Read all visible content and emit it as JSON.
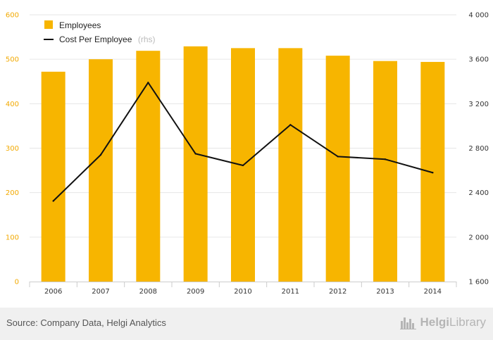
{
  "chart_data": {
    "type": "bar",
    "categories": [
      "2006",
      "2007",
      "2008",
      "2009",
      "2010",
      "2011",
      "2012",
      "2013",
      "2014"
    ],
    "series": [
      {
        "name": "Employees",
        "type": "bar",
        "axis": "left",
        "color": "#f7b500",
        "values": [
          472,
          500,
          519,
          529,
          525,
          525,
          508,
          496,
          494
        ]
      },
      {
        "name": "Cost Per Employee",
        "axis_note": "(rhs)",
        "type": "line",
        "axis": "right",
        "color": "#111111",
        "values": [
          2325,
          2740,
          3390,
          2750,
          2645,
          3010,
          2725,
          2700,
          2580
        ]
      }
    ],
    "y_left": {
      "min": 0,
      "max": 600,
      "ticks": [
        "0",
        "100",
        "200",
        "300",
        "400",
        "500",
        "600"
      ],
      "color": "#f2a900"
    },
    "y_right": {
      "min": 1600,
      "max": 4000,
      "ticks": [
        "1 600",
        "2 000",
        "2 400",
        "2 800",
        "3 200",
        "3 600",
        "4 000"
      ]
    },
    "grid": true,
    "legend_position": "top-left"
  },
  "footer": {
    "source": "Source: Company Data, Helgi Analytics",
    "logo_brand": "Helgi",
    "logo_suffix": "Library"
  }
}
